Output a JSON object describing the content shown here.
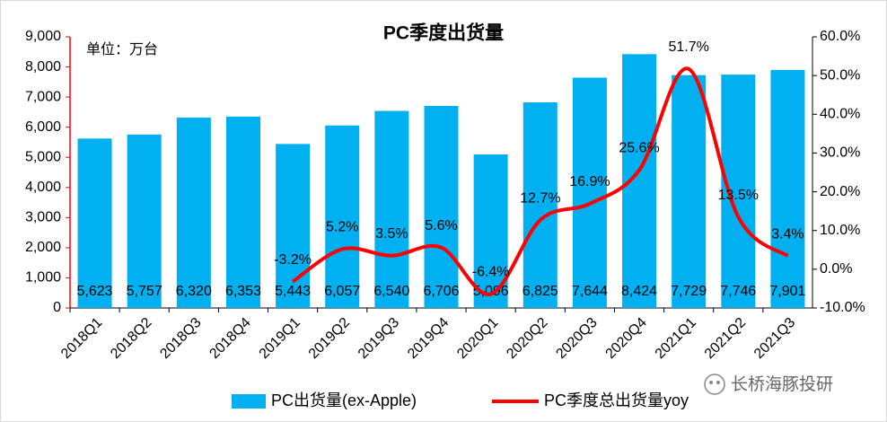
{
  "chart_data": {
    "type": "bar",
    "title": "PC季度出货量",
    "unit_note": "单位：万台",
    "watermark": "长桥海豚投研",
    "categories": [
      "2018Q1",
      "2018Q2",
      "2018Q3",
      "2018Q4",
      "2019Q1",
      "2019Q2",
      "2019Q3",
      "2019Q4",
      "2020Q1",
      "2020Q2",
      "2020Q3",
      "2020Q4",
      "2021Q1",
      "2021Q2",
      "2021Q3"
    ],
    "series": [
      {
        "name": "PC出货量(ex-Apple)",
        "type": "bar",
        "color": "#00b0f0",
        "values": [
          5623,
          5757,
          6320,
          6353,
          5443,
          6057,
          6540,
          6706,
          5096,
          6825,
          7644,
          8424,
          7729,
          7746,
          7901
        ],
        "value_labels": [
          "5,623",
          "5,757",
          "6,320",
          "6,353",
          "5,443",
          "6,057",
          "6,540",
          "6,706",
          "5,096",
          "6,825",
          "7,644",
          "8,424",
          "7,729",
          "7,746",
          "7,901"
        ]
      },
      {
        "name": "PC季度总出货量yoy",
        "type": "line",
        "axis": "y2",
        "color": "#ff0000",
        "values": [
          null,
          null,
          null,
          null,
          -3.2,
          5.2,
          3.5,
          5.6,
          -6.4,
          12.7,
          16.9,
          25.6,
          51.7,
          13.5,
          3.4
        ],
        "value_labels": [
          null,
          null,
          null,
          null,
          "-3.2%",
          "5.2%",
          "3.5%",
          "5.6%",
          "-6.4%",
          "12.7%",
          "16.9%",
          "25.6%",
          "51.7%",
          "13.5%",
          "3.4%"
        ]
      }
    ],
    "ylim": [
      0,
      9000
    ],
    "yticks": [
      0,
      {
        "value": 1000,
        "label": "1,000"
      },
      {
        "value": 2000,
        "label": "2,000"
      },
      {
        "value": 3000,
        "label": "3,000"
      },
      {
        "value": 4000,
        "label": "4,000"
      },
      {
        "value": 5000,
        "label": "5,000"
      },
      {
        "value": 6000,
        "label": "6,000"
      },
      {
        "value": 7000,
        "label": "7,000"
      },
      {
        "value": 8000,
        "label": "8,000"
      },
      {
        "value": 9000,
        "label": "9,000"
      }
    ],
    "y2lim": [
      -10,
      60
    ],
    "y2ticks": [
      {
        "value": -10,
        "label": "-10.0%"
      },
      {
        "value": 0,
        "label": "0.0%"
      },
      {
        "value": 10,
        "label": "10.0%"
      },
      {
        "value": 20,
        "label": "20.0%"
      },
      {
        "value": 30,
        "label": "30.0%"
      },
      {
        "value": 40,
        "label": "40.0%"
      },
      {
        "value": 50,
        "label": "50.0%"
      },
      {
        "value": 60,
        "label": "60.0%"
      }
    ]
  }
}
